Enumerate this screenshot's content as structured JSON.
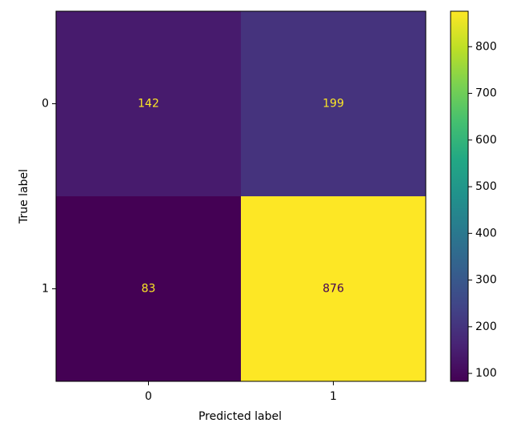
{
  "chart_data": {
    "type": "heatmap",
    "colormap": "viridis",
    "x_label": "Predicted label",
    "y_label": "True label",
    "x_categories": [
      "0",
      "1"
    ],
    "y_categories": [
      "0",
      "1"
    ],
    "values": [
      [
        142,
        199
      ],
      [
        83,
        876
      ]
    ],
    "colorbar_lim": [
      83,
      876
    ],
    "colorbar_ticks": [
      100,
      200,
      300,
      400,
      500,
      600,
      700,
      800
    ]
  }
}
